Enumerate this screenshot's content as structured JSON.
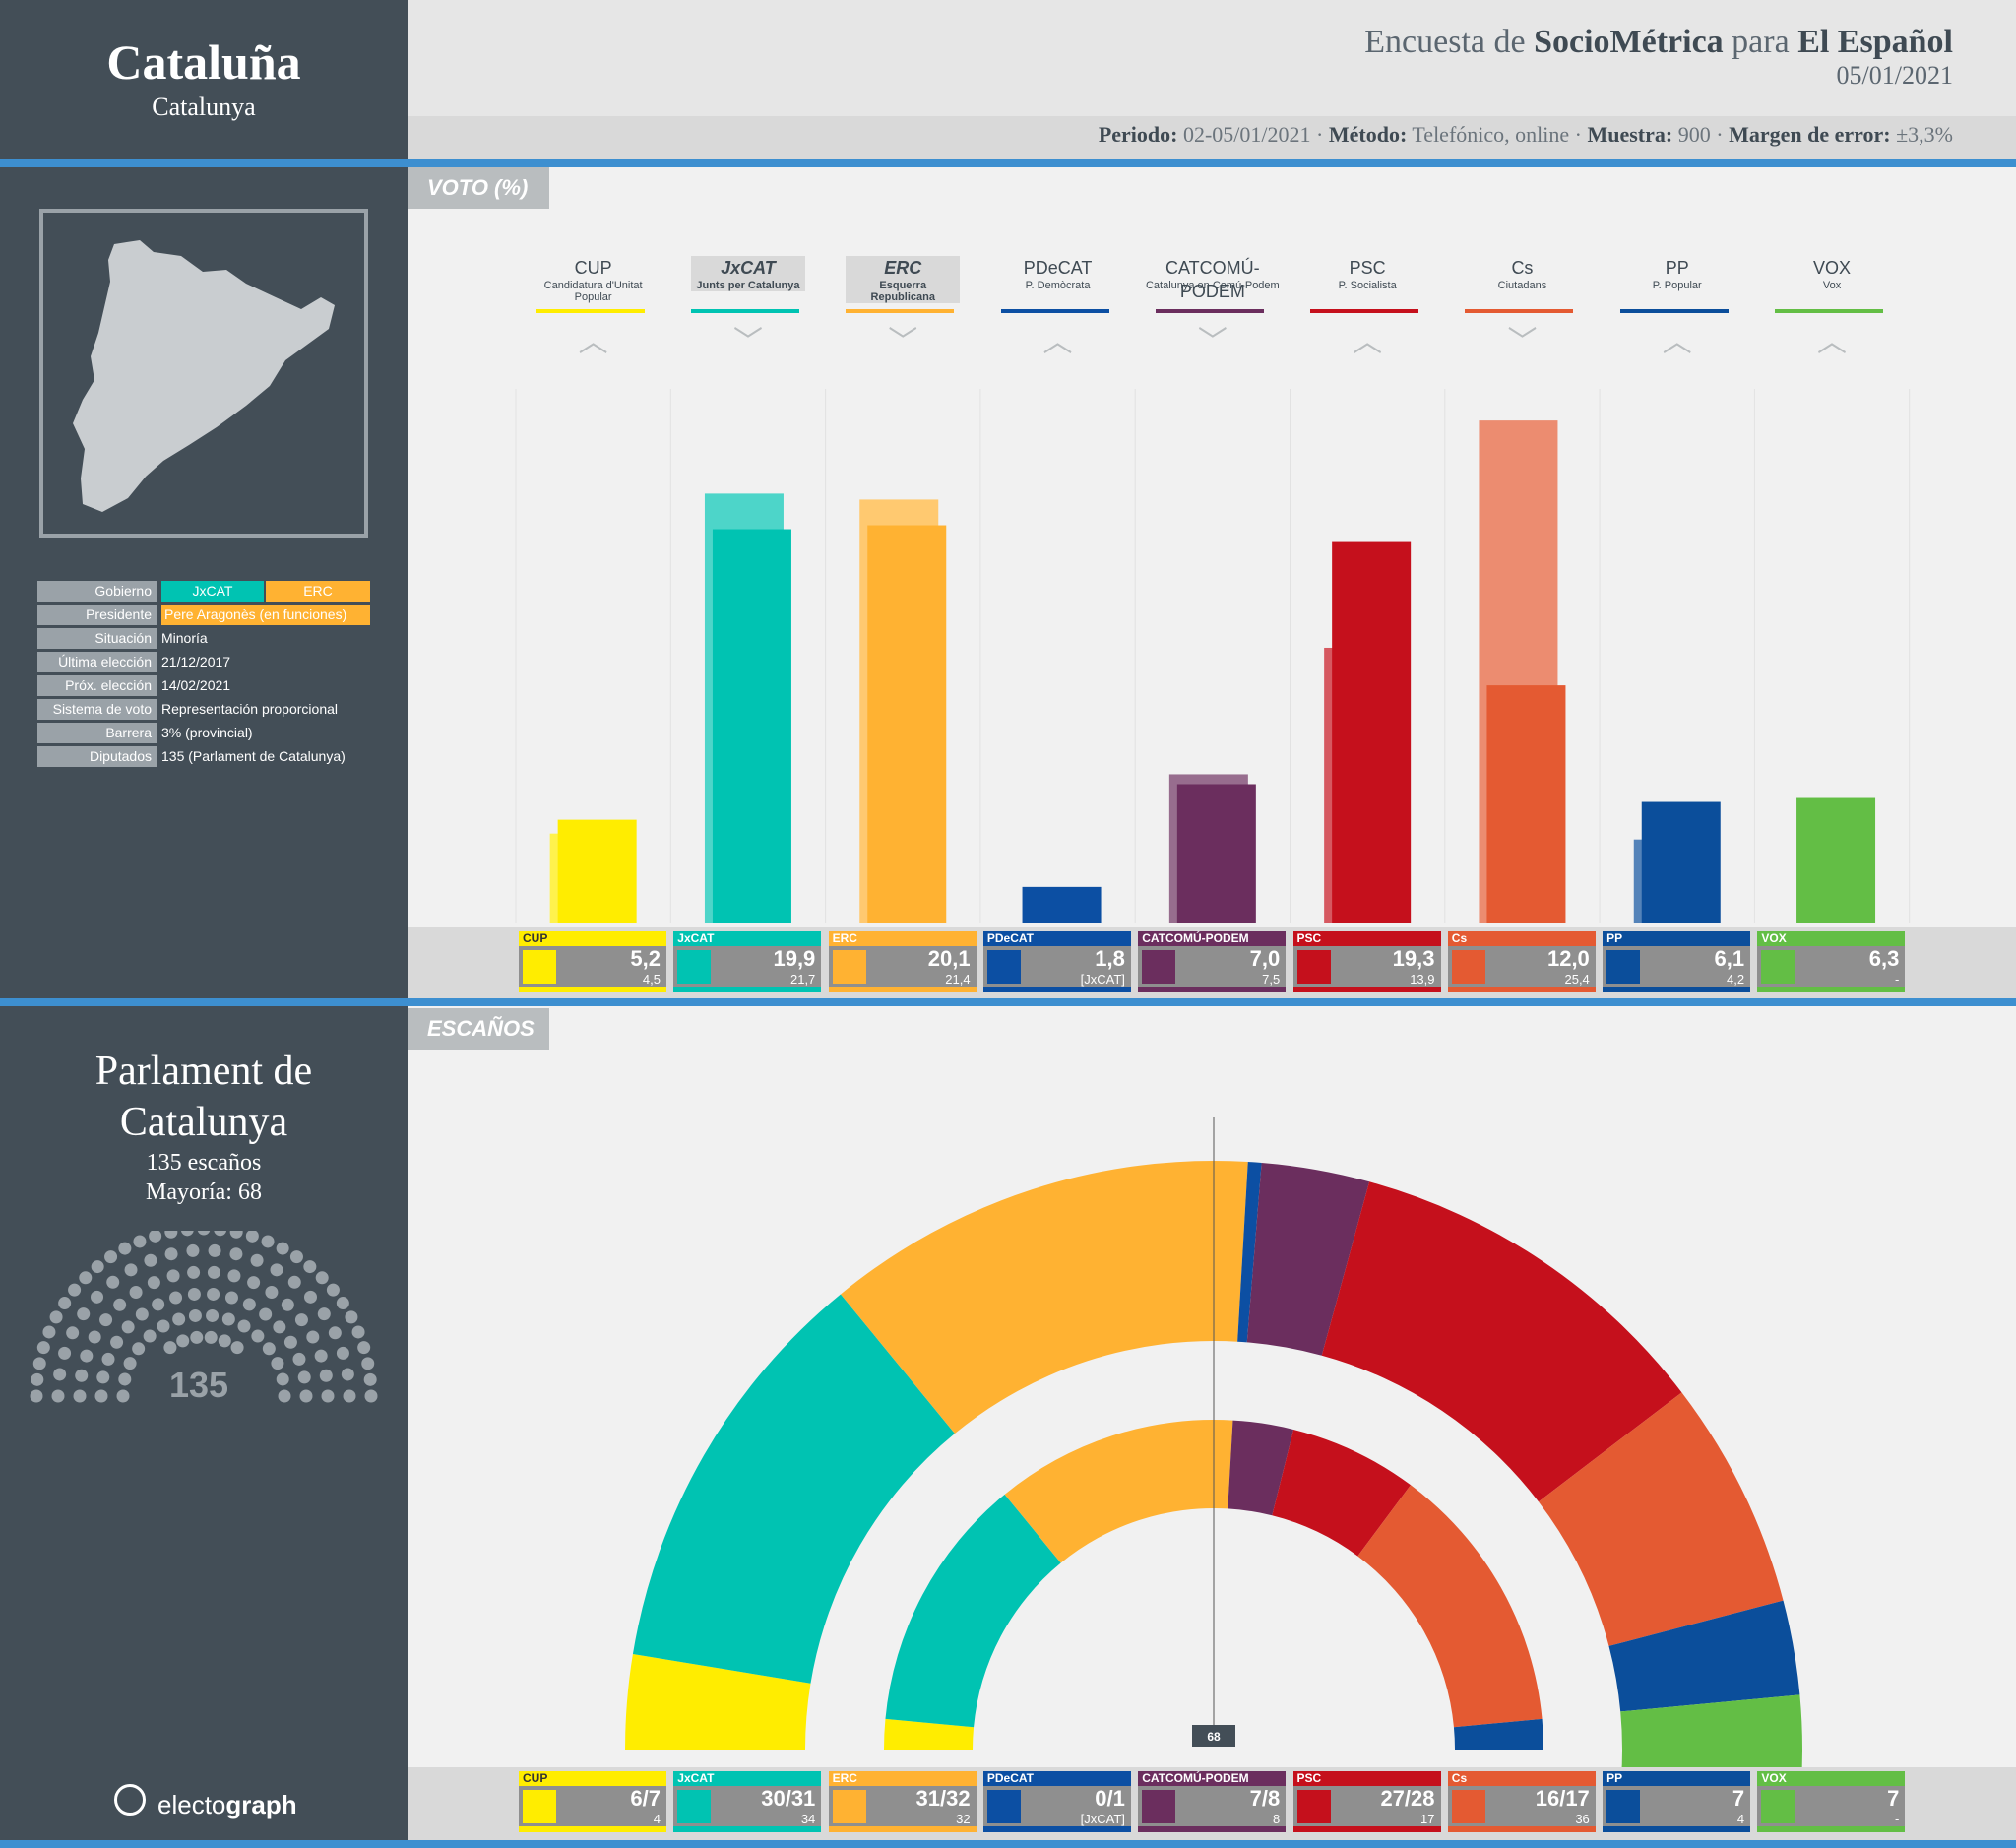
{
  "region": {
    "name": "Cataluña",
    "local_name": "Catalunya"
  },
  "survey": {
    "prefix": "Encuesta de",
    "pollster": "SocioMétrica",
    "connector": "para",
    "media": "El Español",
    "date": "05/01/2021",
    "period_label": "Periodo:",
    "period": "02-05/01/2021",
    "method_label": "Método:",
    "method": "Telefónico, online",
    "sample_label": "Muestra:",
    "sample": "900",
    "margin_label": "Margen de error:",
    "margin": "±3,3%"
  },
  "info": {
    "government_label": "Gobierno",
    "government": [
      "JxCAT",
      "ERC"
    ],
    "president_label": "Presidente",
    "president": "Pere Aragonès (en funciones)",
    "situation_label": "Situación",
    "situation": "Minoría",
    "last_election_label": "Última elección",
    "last_election": "21/12/2017",
    "next_election_label": "Próx. elección",
    "next_election": "14/02/2021",
    "voting_system_label": "Sistema de voto",
    "voting_system": "Representación proporcional",
    "threshold_label": "Barrera",
    "threshold": "3% (provincial)",
    "deputies_label": "Diputados",
    "deputies": "135 (Parlament de Catalunya)"
  },
  "sections": {
    "vote": "VOTO (%)",
    "seats": "ESCAÑOS"
  },
  "parliament": {
    "name_line1": "Parlament de",
    "name_line2": "Catalunya",
    "seats_text": "135 escaños",
    "majority_text": "Mayoría: 68",
    "total": "135",
    "majority_marker": "68"
  },
  "branding": {
    "prefix": "electo",
    "suffix": "graph"
  },
  "chart_data": [
    {
      "type": "bar",
      "title": "VOTO (%)",
      "categories": [
        "CUP",
        "JxCAT",
        "ERC",
        "PDeCAT",
        "CATCOMÚ-PODEM",
        "PSC",
        "Cs",
        "PP",
        "VOX"
      ],
      "subtitles": [
        "Candidatura d'Unitat Popular",
        "Junts per Catalunya",
        "Esquerra Republicana",
        "P. Demòcrata",
        "Catalunya en Comú-Podem",
        "P. Socialista",
        "Ciutadans",
        "P. Popular",
        "Vox"
      ],
      "colors": [
        "#ffed00",
        "#00c3b2",
        "#ffb232",
        "#0c4fa3",
        "#6b2e5e",
        "#c5101c",
        "#e45a32",
        "#0b4e9b",
        "#63be45"
      ],
      "trend": [
        "up",
        "down",
        "down",
        "up",
        "down",
        "up",
        "down",
        "up",
        "up"
      ],
      "series": [
        {
          "name": "Encuesta",
          "values": [
            5.2,
            19.9,
            20.1,
            1.8,
            7.0,
            19.3,
            12.0,
            6.1,
            6.3
          ],
          "labels": [
            "5,2",
            "19,9",
            "20,1",
            "1,8",
            "7,0",
            "19,3",
            "12,0",
            "6,1",
            "6,3"
          ]
        },
        {
          "name": "Elección anterior",
          "values": [
            4.5,
            21.7,
            21.4,
            null,
            7.5,
            13.9,
            25.4,
            4.2,
            null
          ],
          "labels": [
            "4,5",
            "21,7",
            "21,4",
            "[JxCAT]",
            "7,5",
            "13,9",
            "25,4",
            "4,2",
            "-"
          ]
        }
      ],
      "ylim": [
        0,
        27
      ]
    },
    {
      "type": "parliament",
      "title": "ESCAÑOS",
      "total_seats": 135,
      "majority": 68,
      "categories": [
        "CUP",
        "JxCAT",
        "ERC",
        "PDeCAT",
        "CATCOMÚ-PODEM",
        "PSC",
        "Cs",
        "PP",
        "VOX"
      ],
      "seats_min": [
        6,
        30,
        31,
        0,
        7,
        27,
        16,
        7,
        7
      ],
      "seats_max": [
        7,
        31,
        32,
        1,
        8,
        28,
        17,
        7,
        7
      ],
      "seats_label": [
        "6/7",
        "30/31",
        "31/32",
        "0/1",
        "7/8",
        "27/28",
        "16/17",
        "7",
        "7"
      ],
      "previous_label": [
        "4",
        "34",
        "32",
        "[JxCAT]",
        "8",
        "17",
        "36",
        "4",
        "-"
      ],
      "previous_seats": [
        4,
        34,
        32,
        0,
        8,
        17,
        36,
        4,
        0
      ]
    }
  ]
}
